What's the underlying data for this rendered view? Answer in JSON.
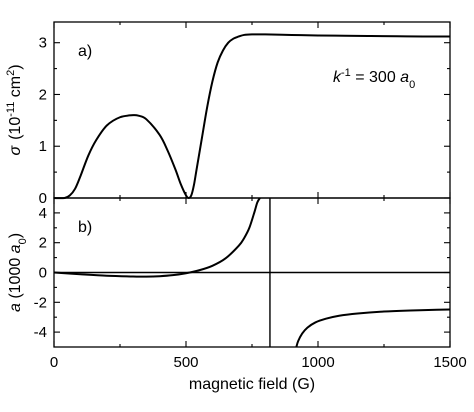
{
  "chart_data": [
    {
      "type": "line",
      "panel_label": "a)",
      "xlabel": "",
      "ylabel_parts": [
        "σ",
        "(10",
        "-11",
        " cm",
        "2",
        ")"
      ],
      "annotation_parts": [
        "k",
        "-1",
        " = 300 ",
        "a",
        "0"
      ],
      "xlim": [
        0,
        1500
      ],
      "ylim": [
        0,
        3.4
      ],
      "yticks": [
        0,
        1,
        2,
        3
      ],
      "yticks_labels": [
        "0",
        "1",
        "2",
        "3"
      ],
      "grid": false,
      "series": [
        {
          "x": [
            0,
            40,
            60,
            80,
            100,
            130,
            160,
            200,
            250,
            300,
            320,
            350,
            400,
            430,
            460,
            480,
            500,
            510,
            520,
            530,
            540,
            560,
            580,
            600,
            620,
            640,
            660,
            680,
            700,
            720,
            750,
            800,
            900,
            1000,
            1100,
            1200,
            1300,
            1400,
            1500
          ],
          "y": [
            0,
            0,
            0.05,
            0.18,
            0.42,
            0.82,
            1.12,
            1.4,
            1.56,
            1.6,
            1.59,
            1.52,
            1.22,
            0.92,
            0.55,
            0.27,
            0.05,
            0,
            0.05,
            0.25,
            0.55,
            1.15,
            1.75,
            2.25,
            2.62,
            2.85,
            3.0,
            3.08,
            3.12,
            3.15,
            3.16,
            3.16,
            3.15,
            3.14,
            3.135,
            3.13,
            3.125,
            3.12,
            3.12
          ]
        }
      ]
    },
    {
      "type": "line",
      "panel_label": "b)",
      "xlabel": "magnetic field  (G)",
      "ylabel_parts": [
        "a",
        "  (1000 ",
        "a",
        "0",
        ")"
      ],
      "xlim": [
        0,
        1500
      ],
      "ylim": [
        -5,
        5
      ],
      "xticks": [
        0,
        500,
        1000,
        1500
      ],
      "xticks_labels": [
        "0",
        "500",
        "1000",
        "1500"
      ],
      "yticks": [
        -4,
        -2,
        0,
        2,
        4
      ],
      "yticks_labels": [
        "-4",
        "-2",
        "0",
        "2",
        "4"
      ],
      "grid": false,
      "reference_lines": {
        "horizontal_y": 0,
        "vertical_x": 818
      },
      "series": [
        {
          "segment": "below-resonance",
          "x": [
            0,
            100,
            200,
            300,
            350,
            400,
            450,
            500,
            550,
            600,
            650,
            700,
            720,
            740,
            760,
            770,
            780
          ],
          "y": [
            0,
            -0.12,
            -0.22,
            -0.27,
            -0.28,
            -0.25,
            -0.18,
            -0.05,
            0.15,
            0.45,
            0.95,
            1.8,
            2.3,
            3.0,
            4.1,
            4.7,
            5.0
          ]
        },
        {
          "segment": "above-resonance",
          "x": [
            918,
            925,
            940,
            960,
            990,
            1030,
            1080,
            1150,
            1250,
            1350,
            1450,
            1500
          ],
          "y": [
            -5.0,
            -4.6,
            -4.1,
            -3.7,
            -3.35,
            -3.1,
            -2.9,
            -2.75,
            -2.62,
            -2.55,
            -2.5,
            -2.48
          ]
        }
      ]
    }
  ]
}
